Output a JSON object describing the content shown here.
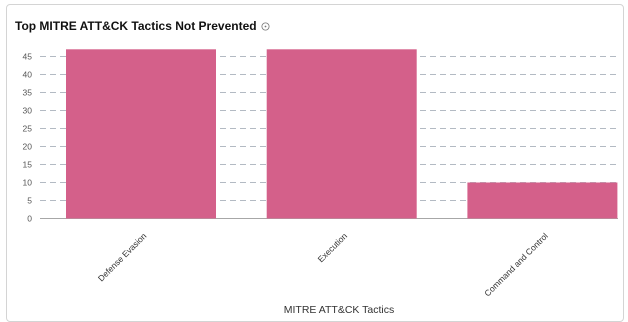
{
  "card": {
    "title": "Top MITRE ATT&CK Tactics Not Prevented",
    "info_icon": "info-circle-icon"
  },
  "chart_data": {
    "type": "bar",
    "title": "Top MITRE ATT&CK Tactics Not Prevented",
    "categories": [
      "Defense Evasion",
      "Execution",
      "Command and Control"
    ],
    "values": [
      47,
      47,
      10
    ],
    "xlabel": "MITRE ATT&CK Tactics",
    "ylabel": "",
    "ylim": [
      0,
      45
    ],
    "yticks": [
      0,
      5,
      10,
      15,
      20,
      25,
      30,
      35,
      40,
      45
    ],
    "grid": true,
    "grid_style": "dashed",
    "bar_color": "#d4608a",
    "grid_color": "#9aa4b0"
  }
}
